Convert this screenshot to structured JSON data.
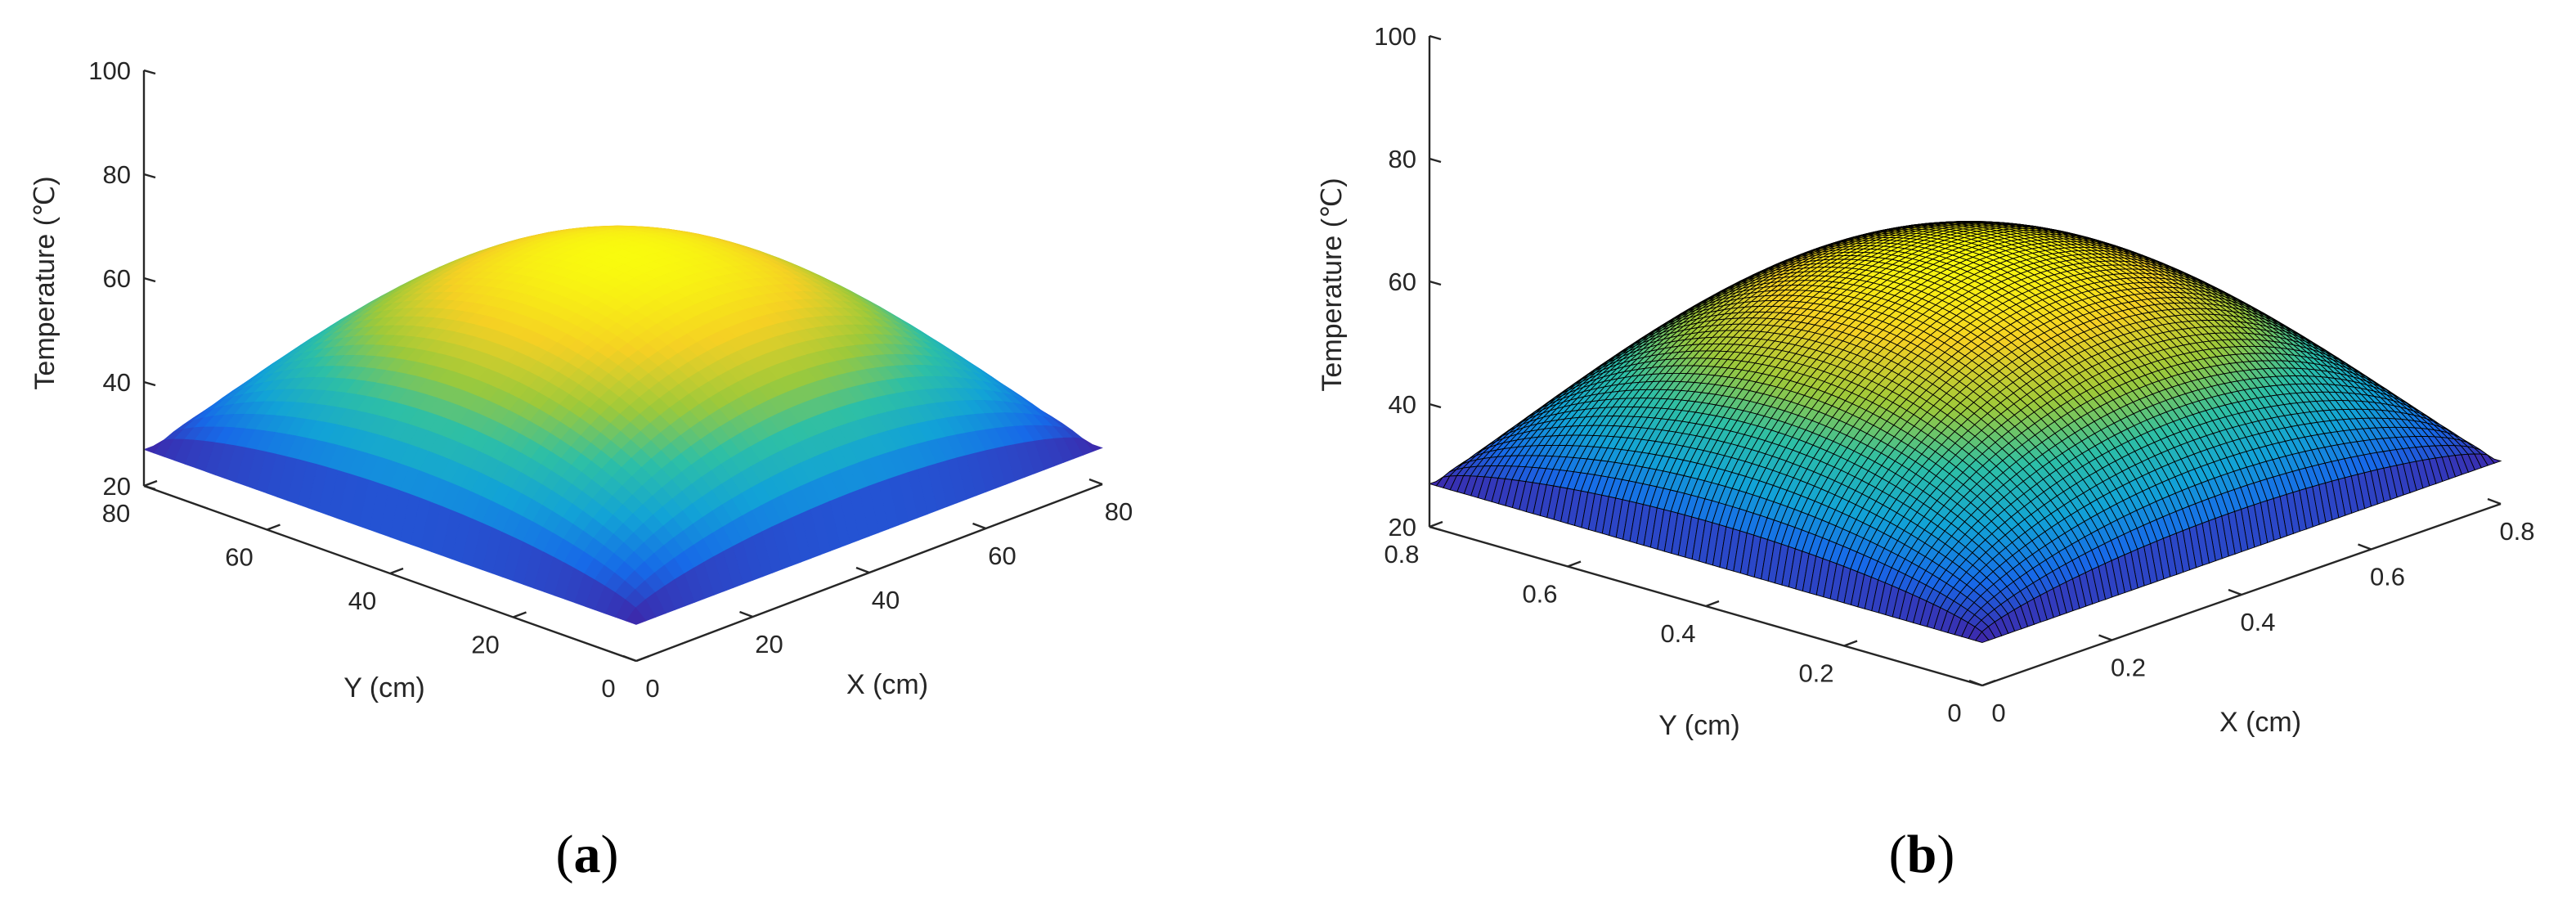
{
  "chart_data": [
    {
      "type": "surface",
      "panel_label": "a",
      "xlabel": "X (cm)",
      "ylabel": "Y (cm)",
      "zlabel": "Temperature (℃)",
      "xlim": [
        0,
        80
      ],
      "ylim": [
        0,
        80
      ],
      "zlim": [
        20,
        100
      ],
      "x_ticks": [
        "0",
        "20",
        "40",
        "60",
        "80"
      ],
      "y_ticks": [
        "0",
        "20",
        "40",
        "60",
        "80"
      ],
      "z_ticks": [
        "20",
        "40",
        "60",
        "80",
        "100"
      ],
      "edge_temperature": 27,
      "peak_temperature": 64,
      "grid": false,
      "colormap": [
        "#3e26a8",
        "#1769e8",
        "#12a3d6",
        "#2dbfa6",
        "#9dc93a",
        "#f5d024",
        "#f9fb0e"
      ],
      "mesh_lines": false
    },
    {
      "type": "surface",
      "panel_label": "b",
      "xlabel": "X (cm)",
      "ylabel": "Y (cm)",
      "zlabel": "Temperature (℃)",
      "xlim": [
        0,
        0.8
      ],
      "ylim": [
        0,
        0.8
      ],
      "zlim": [
        20,
        100
      ],
      "x_ticks": [
        "0",
        "0.2",
        "0.4",
        "0.6",
        "0.8"
      ],
      "y_ticks": [
        "0",
        "0.2",
        "0.4",
        "0.6",
        "0.8"
      ],
      "z_ticks": [
        "20",
        "40",
        "60",
        "80",
        "100"
      ],
      "edge_temperature": 27,
      "peak_temperature": 64,
      "grid": false,
      "colormap": [
        "#3e26a8",
        "#1769e8",
        "#12a3d6",
        "#2dbfa6",
        "#9dc93a",
        "#f5d024",
        "#f9fb0e"
      ],
      "mesh_lines": true,
      "mesh_color": "#000000"
    }
  ]
}
